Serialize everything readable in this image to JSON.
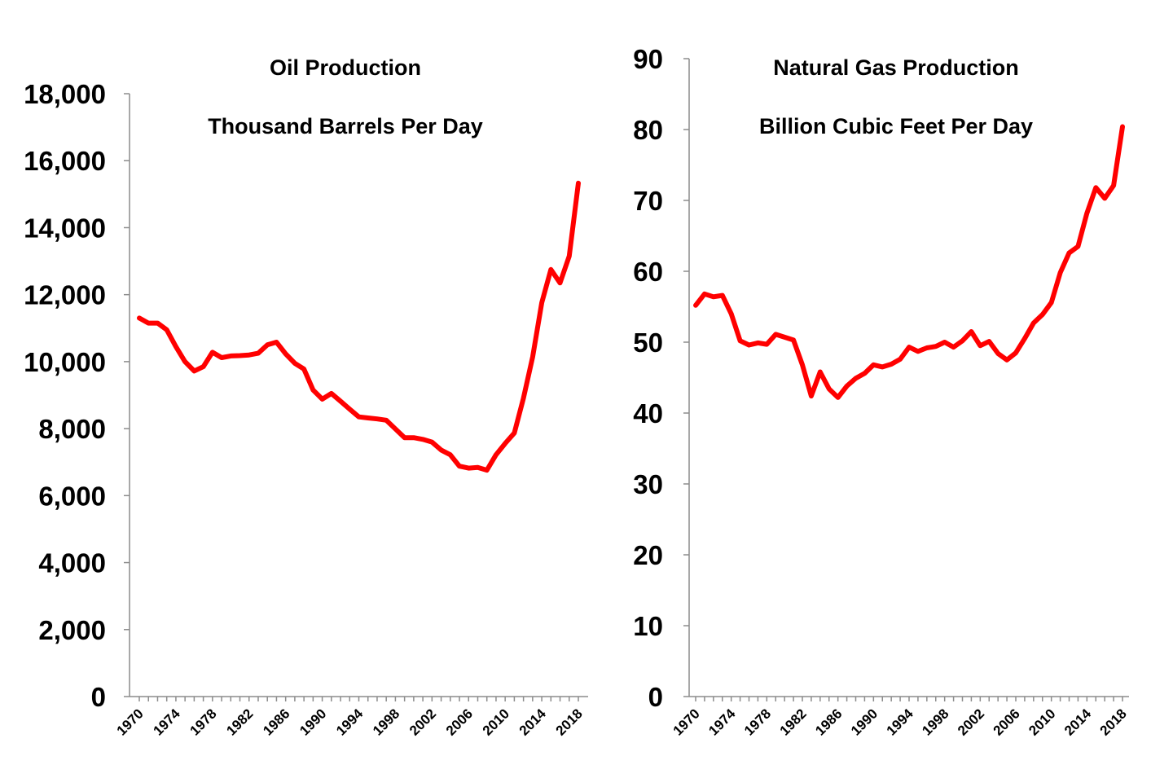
{
  "chart_data": [
    {
      "type": "line",
      "title": "Oil Production",
      "subtitle": "Thousand Barrels Per Day",
      "xlabel": "",
      "ylabel": "",
      "ylim": [
        0,
        18000
      ],
      "yticks": [
        "0",
        "2,000",
        "4,000",
        "6,000",
        "8,000",
        "10,000",
        "12,000",
        "14,000",
        "16,000",
        "18,000"
      ],
      "xticks": [
        "1970",
        "1974",
        "1978",
        "1982",
        "1986",
        "1990",
        "1994",
        "1998",
        "2002",
        "2006",
        "2010",
        "2014",
        "2018"
      ],
      "grid": false,
      "legend": "none",
      "color": "#ff0000",
      "x": [
        1970,
        1971,
        1972,
        1973,
        1974,
        1975,
        1976,
        1977,
        1978,
        1979,
        1980,
        1981,
        1982,
        1983,
        1984,
        1985,
        1986,
        1987,
        1988,
        1989,
        1990,
        1991,
        1992,
        1993,
        1994,
        1995,
        1996,
        1997,
        1998,
        1999,
        2000,
        2001,
        2002,
        2003,
        2004,
        2005,
        2006,
        2007,
        2008,
        2009,
        2010,
        2011,
        2012,
        2013,
        2014,
        2015,
        2016,
        2017,
        2018
      ],
      "values": [
        11300,
        11150,
        11150,
        10950,
        10450,
        10000,
        9720,
        9850,
        10280,
        10120,
        10170,
        10180,
        10200,
        10250,
        10500,
        10580,
        10230,
        9950,
        9780,
        9150,
        8880,
        9050,
        8820,
        8580,
        8350,
        8320,
        8290,
        8250,
        7990,
        7730,
        7730,
        7680,
        7600,
        7360,
        7220,
        6880,
        6820,
        6840,
        6760,
        7220,
        7560,
        7870,
        8910,
        10140,
        11760,
        12750,
        12350,
        13150,
        15330
      ]
    },
    {
      "type": "line",
      "title": "Natural Gas Production",
      "subtitle": "Billion Cubic Feet Per Day",
      "xlabel": "",
      "ylabel": "",
      "ylim": [
        0,
        90
      ],
      "yticks": [
        "0",
        "10",
        "20",
        "30",
        "40",
        "50",
        "60",
        "70",
        "80",
        "90"
      ],
      "xticks": [
        "1970",
        "1974",
        "1978",
        "1982",
        "1986",
        "1990",
        "1994",
        "1998",
        "2002",
        "2006",
        "2010",
        "2014",
        "2018"
      ],
      "grid": false,
      "legend": "none",
      "color": "#ff0000",
      "x": [
        1970,
        1971,
        1972,
        1973,
        1974,
        1975,
        1976,
        1977,
        1978,
        1979,
        1980,
        1981,
        1982,
        1983,
        1984,
        1985,
        1986,
        1987,
        1988,
        1989,
        1990,
        1991,
        1992,
        1993,
        1994,
        1995,
        1996,
        1997,
        1998,
        1999,
        2000,
        2001,
        2002,
        2003,
        2004,
        2005,
        2006,
        2007,
        2008,
        2009,
        2010,
        2011,
        2012,
        2013,
        2014,
        2015,
        2016,
        2017,
        2018
      ],
      "values": [
        55.2,
        56.8,
        56.4,
        56.6,
        54.0,
        50.2,
        49.6,
        49.9,
        49.7,
        51.1,
        50.7,
        50.3,
        46.8,
        42.4,
        45.8,
        43.4,
        42.2,
        43.8,
        44.9,
        45.6,
        46.8,
        46.5,
        46.9,
        47.6,
        49.3,
        48.7,
        49.2,
        49.4,
        50.0,
        49.3,
        50.2,
        51.5,
        49.5,
        50.1,
        48.4,
        47.5,
        48.5,
        50.5,
        52.7,
        53.9,
        55.6,
        59.8,
        62.6,
        63.5,
        68.2,
        71.8,
        70.3,
        72.1,
        80.4
      ]
    }
  ]
}
